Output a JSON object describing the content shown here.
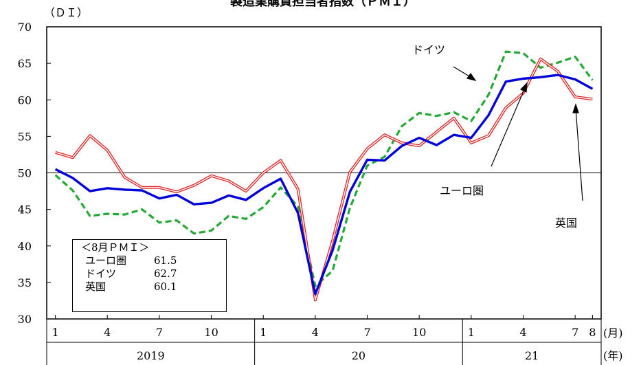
{
  "chart_data": {
    "type": "line",
    "title": "製造業購買担当者指数（ＰＭＩ）",
    "ylabel": "（ＤＩ）",
    "ylim": [
      30,
      70
    ],
    "yticks": [
      30,
      35,
      40,
      45,
      50,
      55,
      60,
      65,
      70
    ],
    "reference_line": 50,
    "x_month_ticks": [
      "1",
      "4",
      "7",
      "10",
      "1",
      "4",
      "7",
      "10",
      "1",
      "4",
      "7",
      "8"
    ],
    "x_month_unit": "(月)",
    "x_year_labels": [
      "2019",
      "20",
      "21"
    ],
    "x_year_unit": "(年)",
    "x": [
      "2019-01",
      "2019-02",
      "2019-03",
      "2019-04",
      "2019-05",
      "2019-06",
      "2019-07",
      "2019-08",
      "2019-09",
      "2019-10",
      "2019-11",
      "2019-12",
      "2020-01",
      "2020-02",
      "2020-03",
      "2020-04",
      "2020-05",
      "2020-06",
      "2020-07",
      "2020-08",
      "2020-09",
      "2020-10",
      "2020-11",
      "2020-12",
      "2021-01",
      "2021-02",
      "2021-03",
      "2021-04",
      "2021-05",
      "2021-06",
      "2021-07",
      "2021-08"
    ],
    "series": [
      {
        "name": "ユーロ圏",
        "color": "#0000dd",
        "style": "solid",
        "values": [
          50.5,
          49.3,
          47.5,
          47.9,
          47.7,
          47.6,
          46.5,
          47.0,
          45.7,
          45.9,
          46.9,
          46.3,
          47.9,
          49.2,
          44.5,
          33.4,
          39.4,
          47.4,
          51.8,
          51.7,
          53.7,
          54.8,
          53.8,
          55.2,
          54.8,
          57.9,
          62.5,
          62.9,
          63.1,
          63.4,
          62.8,
          61.5
        ]
      },
      {
        "name": "ドイツ",
        "color": "#22aa33",
        "style": "dashed",
        "values": [
          49.7,
          47.6,
          44.1,
          44.4,
          44.3,
          45.0,
          43.2,
          43.5,
          41.7,
          42.1,
          44.1,
          43.7,
          45.3,
          48.0,
          45.4,
          34.5,
          36.6,
          45.2,
          51.0,
          52.2,
          56.4,
          58.2,
          57.8,
          58.3,
          57.1,
          60.7,
          66.6,
          66.4,
          64.4,
          65.1,
          65.9,
          62.7
        ]
      },
      {
        "name": "英国",
        "color": "#dd2222",
        "style": "double",
        "values": [
          52.8,
          52.1,
          55.1,
          53.1,
          49.4,
          48.0,
          48.0,
          47.4,
          48.3,
          49.6,
          48.9,
          47.5,
          50.0,
          51.7,
          47.8,
          32.6,
          40.7,
          50.1,
          53.3,
          55.2,
          54.1,
          53.7,
          55.6,
          57.5,
          54.1,
          55.1,
          58.9,
          60.9,
          65.6,
          63.9,
          60.4,
          60.1
        ]
      }
    ],
    "annotations": [
      {
        "text": "ドイツ",
        "series": "ドイツ"
      },
      {
        "text": "ユーロ圏",
        "series": "ユーロ圏"
      },
      {
        "text": "英国",
        "series": "英国"
      }
    ],
    "summary_box": {
      "title": "＜8月ＰＭＩ＞",
      "rows": [
        {
          "name": "ユーロ圏",
          "value": "61.5"
        },
        {
          "name": "ドイツ",
          "value": "62.7"
        },
        {
          "name": "英国",
          "value": "60.1"
        }
      ]
    }
  }
}
